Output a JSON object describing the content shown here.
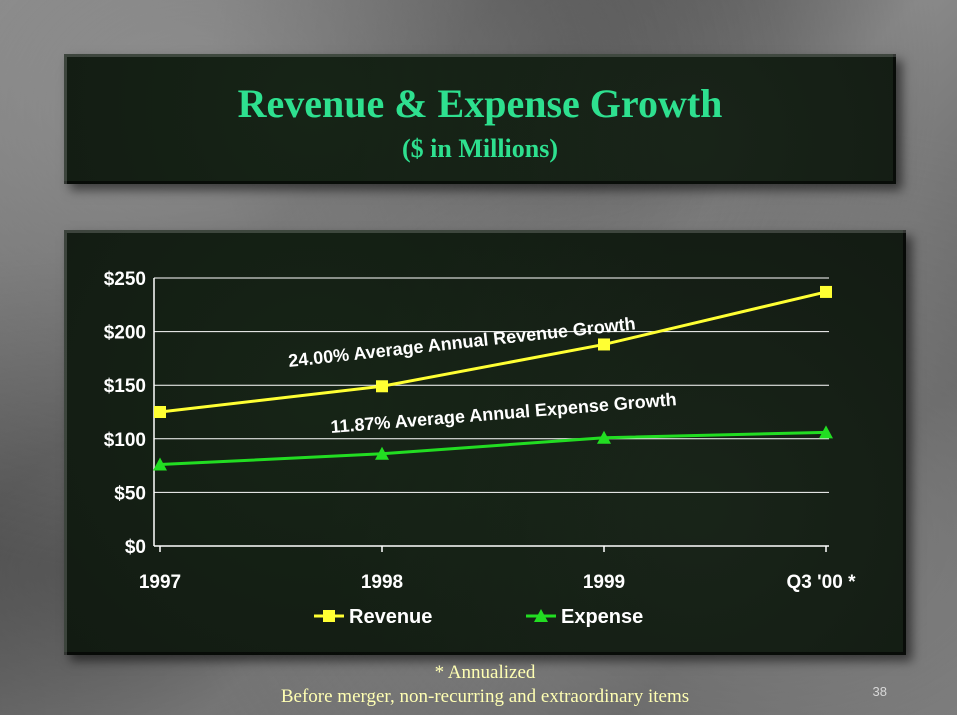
{
  "slide": {
    "title": "Revenue & Expense Growth",
    "subtitle": "($ in Millions)",
    "footnote_annualized": "* Annualized",
    "footnote_basis": "Before merger, non-recurring and extraordinary items",
    "page_number": "38"
  },
  "colors": {
    "title": "#2ee08f",
    "revenue": "#ffff33",
    "expense": "#22dd22",
    "axis_text": "#ffffff",
    "footnote": "#ffffb3"
  },
  "chart_data": {
    "type": "line",
    "categories": [
      "1997",
      "1998",
      "1999",
      "Q3 '00 *"
    ],
    "series": [
      {
        "name": "Revenue",
        "values": [
          125,
          149,
          188,
          237
        ],
        "color": "#ffff33",
        "marker": "square"
      },
      {
        "name": "Expense",
        "values": [
          76,
          86,
          101,
          106
        ],
        "color": "#22dd22",
        "marker": "triangle"
      }
    ],
    "ylim": [
      0,
      250
    ],
    "y_ticks": [
      0,
      50,
      100,
      150,
      200,
      250
    ],
    "y_tick_labels": [
      "$0",
      "$50",
      "$100",
      "$150",
      "$200",
      "$250"
    ],
    "grid": true,
    "legend_position": "bottom",
    "annotations": [
      {
        "text": "24.00% Average Annual Revenue Growth",
        "series": "Revenue"
      },
      {
        "text": "11.87% Average Annual Expense Growth",
        "series": "Expense"
      }
    ]
  }
}
